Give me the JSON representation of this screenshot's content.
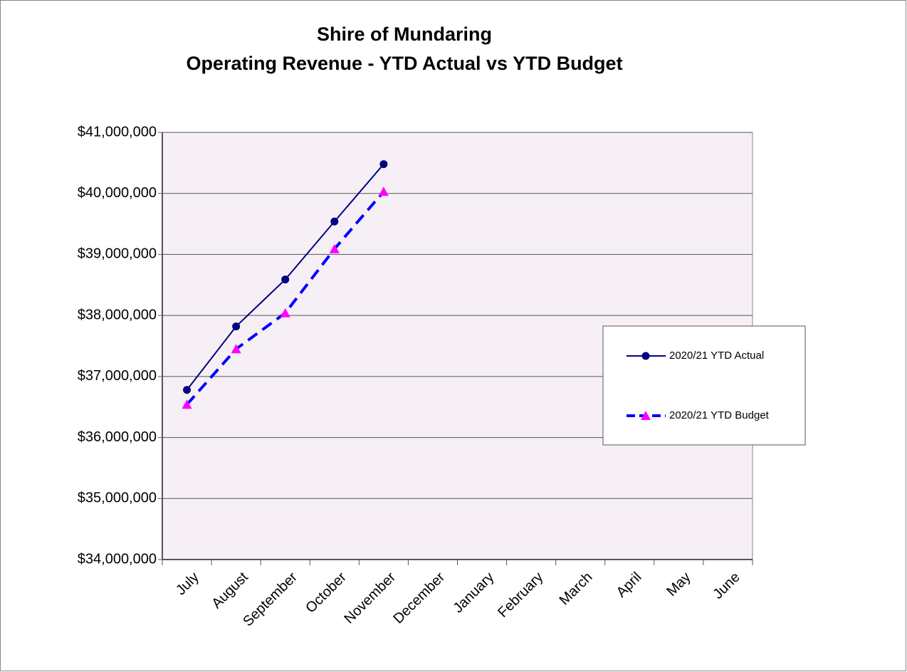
{
  "chart_data": {
    "type": "line",
    "title": "Shire of Mundaring",
    "subtitle": "Operating Revenue - YTD Actual vs YTD Budget",
    "categories": [
      "July",
      "August",
      "September",
      "October",
      "November",
      "December",
      "January",
      "February",
      "March",
      "April",
      "May",
      "June"
    ],
    "series": [
      {
        "name": "2020/21 YTD Actual",
        "color": "#000080",
        "marker": "circle",
        "marker_color": "#000080",
        "dashed": false,
        "values": [
          36780000,
          37820000,
          38590000,
          39540000,
          40480000,
          null,
          null,
          null,
          null,
          null,
          null,
          null
        ]
      },
      {
        "name": "2020/21 YTD Budget",
        "color": "#0000ff",
        "marker": "triangle",
        "marker_color": "#ff00ff",
        "dashed": true,
        "values": [
          36540000,
          37450000,
          38040000,
          39090000,
          40030000,
          null,
          null,
          null,
          null,
          null,
          null,
          null
        ]
      }
    ],
    "ylim": [
      34000000,
      41000000
    ],
    "yticks": [
      {
        "value": 34000000,
        "label": "$34,000,000"
      },
      {
        "value": 35000000,
        "label": "$35,000,000"
      },
      {
        "value": 36000000,
        "label": "$36,000,000"
      },
      {
        "value": 37000000,
        "label": "$37,000,000"
      },
      {
        "value": 38000000,
        "label": "$38,000,000"
      },
      {
        "value": 39000000,
        "label": "$39,000,000"
      },
      {
        "value": 40000000,
        "label": "$40,000,000"
      },
      {
        "value": 41000000,
        "label": "$41,000,000"
      }
    ],
    "grid": true,
    "legend": "right"
  }
}
